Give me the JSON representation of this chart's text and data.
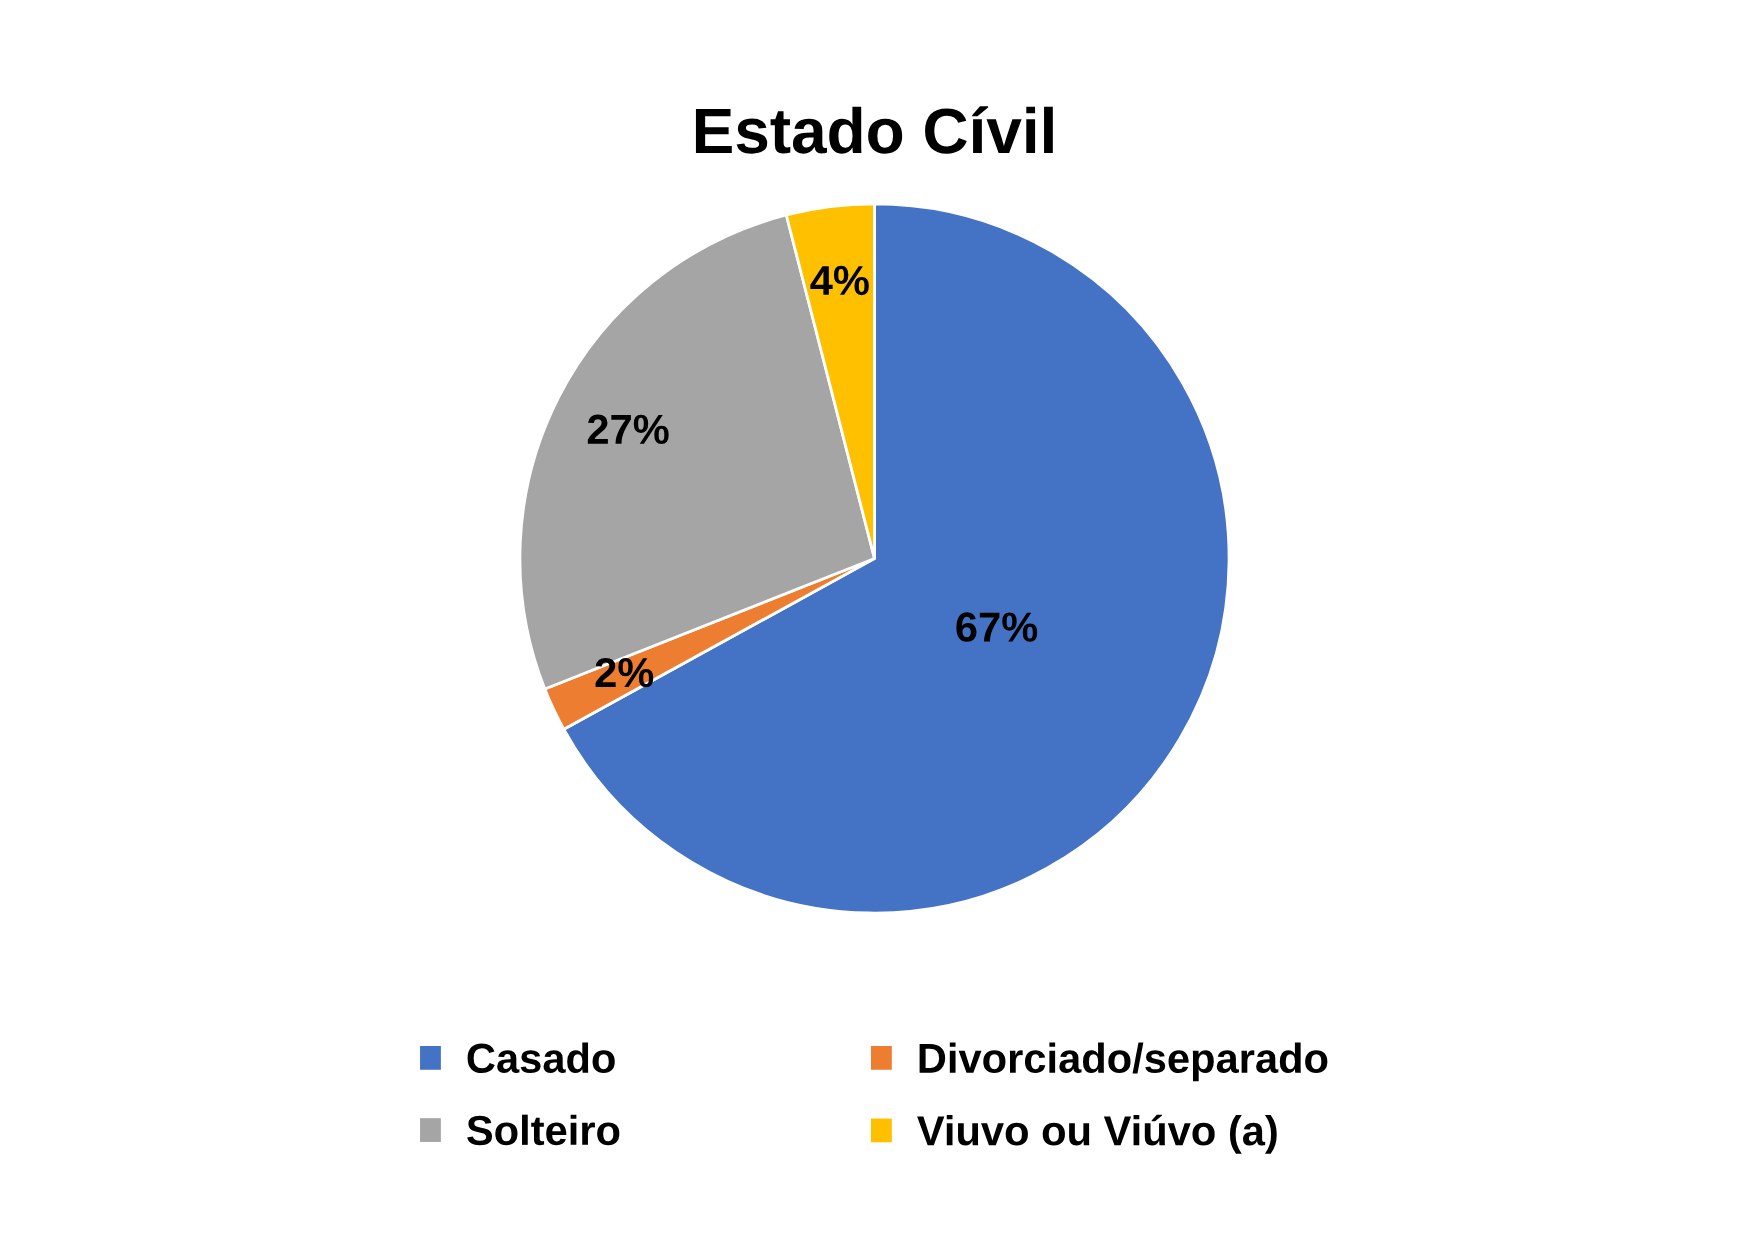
{
  "chart_data": {
    "type": "pie",
    "title": "Estado Cívil",
    "categories": [
      "Casado",
      "Divorciado/separado",
      "Solteiro",
      "Viuvo ou Viúvo (a)"
    ],
    "values": [
      67,
      2,
      27,
      4
    ],
    "colors": [
      "#4472c4",
      "#ed7d31",
      "#a5a5a5",
      "#ffc000"
    ],
    "value_labels": [
      "67%",
      "2%",
      "27%",
      "4%"
    ],
    "legend": "bottom"
  }
}
